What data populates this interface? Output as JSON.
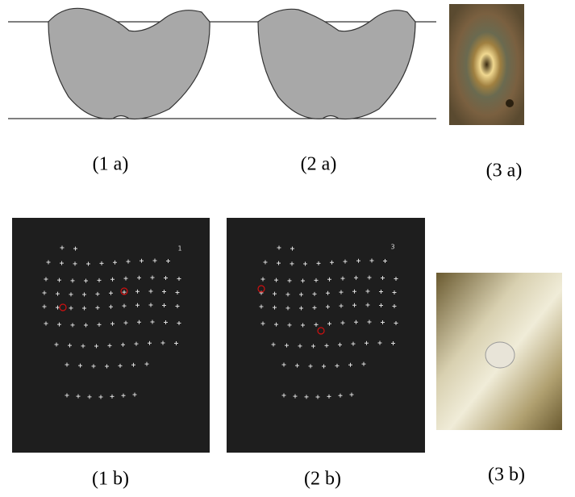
{
  "panels": {
    "top": [
      "(1 a)",
      "(2 a)",
      "(3 a)"
    ],
    "bottom": [
      "(1 b)",
      "(2 b)",
      "(3 b)"
    ]
  },
  "frame_numbers": [
    "1",
    "3"
  ]
}
